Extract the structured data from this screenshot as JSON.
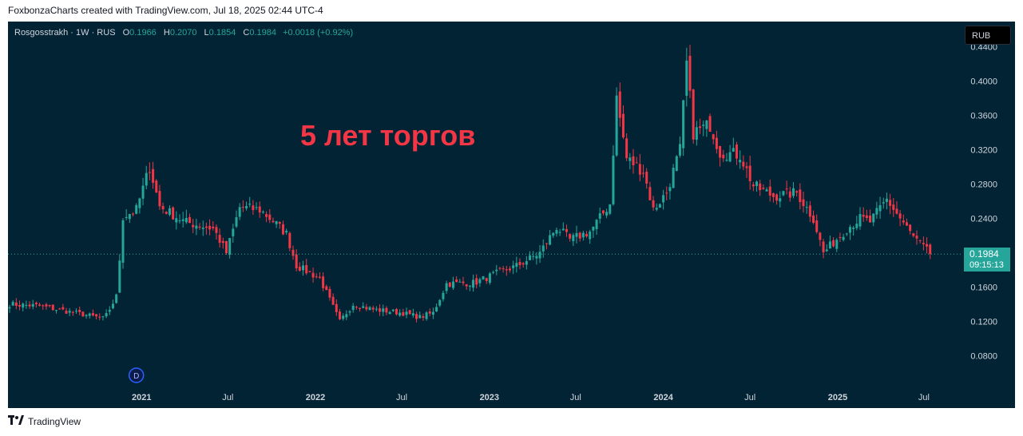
{
  "caption": "FoxbonzaCharts created with TradingView.com, Jul 18, 2025 02:44 UTC-4",
  "legend": {
    "symbol": "Rosgosstrakh · 1W · RUS",
    "o_label": "O",
    "o": "0.1966",
    "h_label": "H",
    "h": "0.2070",
    "l_label": "L",
    "l": "0.1854",
    "c_label": "C",
    "c": "0.1984",
    "change": "+0.0018 (+0.92%)"
  },
  "currency_button": "RUB",
  "annotation": "5 лет торгов",
  "last_price": {
    "value": "0.1984",
    "countdown": "09:15:13"
  },
  "dividend_marker": "D",
  "footer_brand": "TradingView",
  "footer_logo_icon": "tradingview-logo-icon",
  "colors": {
    "background": "#012334",
    "up": "#26a69a",
    "down": "#f23645",
    "axis_text": "#d1d4dc",
    "annotation": "#f23645"
  },
  "chart_data": {
    "type": "candlestick",
    "interval": "1W",
    "ylim": [
      0.06,
      0.46
    ],
    "yticks": [
      0.08,
      0.12,
      0.16,
      0.2,
      0.24,
      0.28,
      0.32,
      0.36,
      0.4,
      0.44
    ],
    "ytick_labels": [
      "0.0800",
      "0.1200",
      "0.1600",
      "0.2000",
      "0.2400",
      "0.2800",
      "0.3200",
      "0.3600",
      "0.4000",
      "0.4400"
    ],
    "xlim": [
      "2020-03-30",
      "2025-08-17"
    ],
    "xticks": [
      {
        "label": "2021",
        "date": "2021-01-01",
        "bold": true
      },
      {
        "label": "Jul",
        "date": "2021-07-01",
        "bold": false
      },
      {
        "label": "2022",
        "date": "2022-01-01",
        "bold": true
      },
      {
        "label": "Jul",
        "date": "2022-07-01",
        "bold": false
      },
      {
        "label": "2023",
        "date": "2023-01-01",
        "bold": true
      },
      {
        "label": "Jul",
        "date": "2023-07-01",
        "bold": false
      },
      {
        "label": "2024",
        "date": "2024-01-01",
        "bold": true
      },
      {
        "label": "Jul",
        "date": "2024-07-01",
        "bold": false
      },
      {
        "label": "2025",
        "date": "2025-01-01",
        "bold": true
      },
      {
        "label": "Jul",
        "date": "2025-07-01",
        "bold": false
      }
    ],
    "last_close": 0.1984,
    "dividend_date": "2020-12-21",
    "anchors": [
      [
        "2020-03-30",
        0.14
      ],
      [
        "2020-06-01",
        0.138
      ],
      [
        "2020-09-01",
        0.128
      ],
      [
        "2020-10-15",
        0.123
      ],
      [
        "2020-11-10",
        0.15
      ],
      [
        "2020-11-23",
        0.242
      ],
      [
        "2020-12-21",
        0.25
      ],
      [
        "2021-01-18",
        0.3
      ],
      [
        "2021-02-08",
        0.254
      ],
      [
        "2021-04-01",
        0.236
      ],
      [
        "2021-06-01",
        0.228
      ],
      [
        "2021-06-28",
        0.2
      ],
      [
        "2021-07-26",
        0.253
      ],
      [
        "2021-09-06",
        0.25
      ],
      [
        "2021-10-04",
        0.237
      ],
      [
        "2021-11-01",
        0.222
      ],
      [
        "2021-11-22",
        0.185
      ],
      [
        "2022-01-10",
        0.17
      ],
      [
        "2022-02-21",
        0.12
      ],
      [
        "2022-03-21",
        0.14
      ],
      [
        "2022-05-01",
        0.134
      ],
      [
        "2022-07-01",
        0.13
      ],
      [
        "2022-08-08",
        0.125
      ],
      [
        "2022-09-05",
        0.13
      ],
      [
        "2022-10-03",
        0.164
      ],
      [
        "2022-12-01",
        0.165
      ],
      [
        "2023-01-16",
        0.176
      ],
      [
        "2023-03-01",
        0.185
      ],
      [
        "2023-04-17",
        0.2
      ],
      [
        "2023-05-22",
        0.23
      ],
      [
        "2023-06-19",
        0.215
      ],
      [
        "2023-08-01",
        0.225
      ],
      [
        "2023-09-11",
        0.257
      ],
      [
        "2023-09-25",
        0.38
      ],
      [
        "2023-10-16",
        0.31
      ],
      [
        "2023-11-20",
        0.295
      ],
      [
        "2023-12-11",
        0.25
      ],
      [
        "2024-01-08",
        0.27
      ],
      [
        "2024-02-05",
        0.32
      ],
      [
        "2024-02-19",
        0.42
      ],
      [
        "2024-03-04",
        0.34
      ],
      [
        "2024-04-08",
        0.349
      ],
      [
        "2024-04-29",
        0.317
      ],
      [
        "2024-06-10",
        0.314
      ],
      [
        "2024-07-08",
        0.278
      ],
      [
        "2024-08-19",
        0.266
      ],
      [
        "2024-10-07",
        0.27
      ],
      [
        "2024-11-11",
        0.24
      ],
      [
        "2024-12-02",
        0.2
      ],
      [
        "2025-01-20",
        0.228
      ],
      [
        "2025-02-17",
        0.24
      ],
      [
        "2025-03-10",
        0.236
      ],
      [
        "2025-04-14",
        0.262
      ],
      [
        "2025-05-12",
        0.24
      ],
      [
        "2025-06-09",
        0.218
      ],
      [
        "2025-07-14",
        0.1984
      ]
    ]
  }
}
